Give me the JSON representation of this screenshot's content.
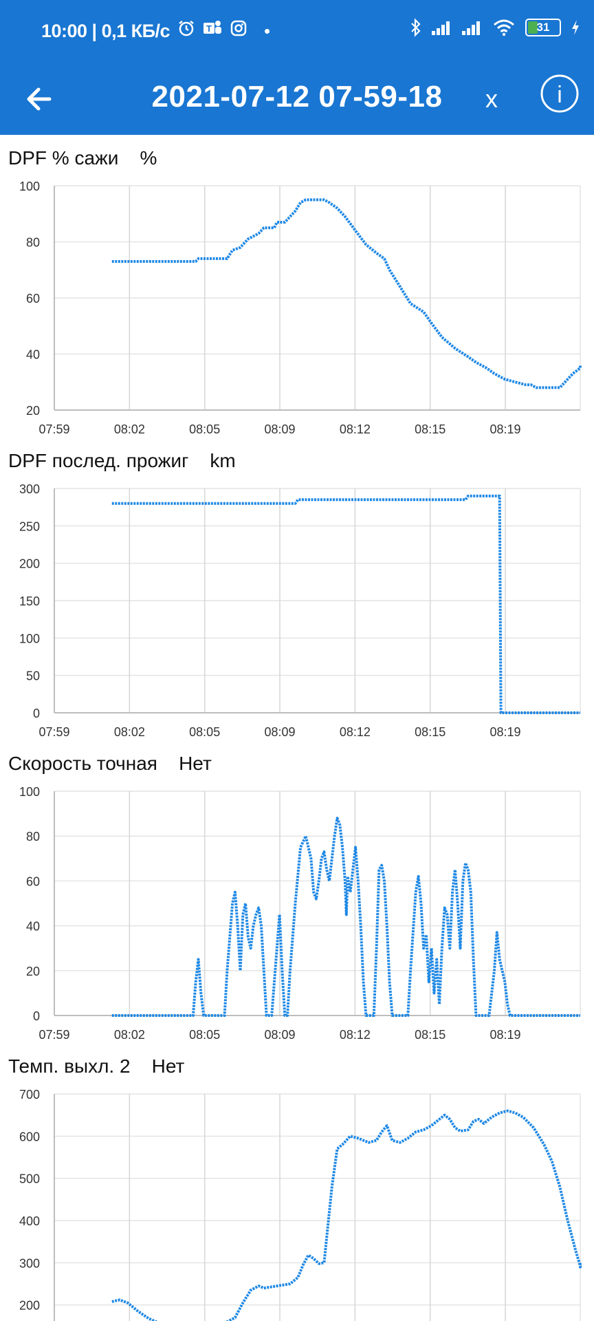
{
  "status_bar": {
    "time_speed": "10:00 | 0,1 КБ/с",
    "battery": "31",
    "icons": [
      "alarm-icon",
      "teams-icon",
      "instagram-icon",
      "bluetooth-icon",
      "signal-icon",
      "signal-icon",
      "wifi-icon",
      "battery-icon",
      "charging-icon"
    ]
  },
  "app_bar": {
    "title": "2021-07-12 07-59-18",
    "close_label": "x",
    "info_label": "i",
    "color": "#1976d2"
  },
  "line_color": "#1e88e5",
  "time_ticks": [
    "07:59",
    "08:02",
    "08:05",
    "08:09",
    "08:12",
    "08:15",
    "08:19"
  ],
  "chart_data": [
    {
      "type": "line",
      "title": "DPF % сажи",
      "unit": "%",
      "xlabel": "",
      "ylabel": "",
      "x_ticks": [
        "07:59",
        "08:02",
        "08:05",
        "08:09",
        "08:12",
        "08:15",
        "08:19"
      ],
      "y_ticks": [
        20,
        40,
        60,
        80,
        100
      ],
      "ylim": [
        20,
        100
      ],
      "xlim_minutes": [
        0,
        20.08
      ],
      "grid": true,
      "points": [
        [
          2.2,
          73
        ],
        [
          5.4,
          73
        ],
        [
          5.5,
          74
        ],
        [
          6.6,
          74
        ],
        [
          6.8,
          77
        ],
        [
          7.1,
          78
        ],
        [
          7.4,
          81
        ],
        [
          7.8,
          83
        ],
        [
          8.0,
          85
        ],
        [
          8.4,
          85
        ],
        [
          8.5,
          87
        ],
        [
          8.8,
          87
        ],
        [
          9.0,
          89
        ],
        [
          9.2,
          91
        ],
        [
          9.4,
          94
        ],
        [
          9.6,
          95
        ],
        [
          10.3,
          95
        ],
        [
          10.5,
          94
        ],
        [
          10.8,
          92
        ],
        [
          11.1,
          89
        ],
        [
          11.5,
          84
        ],
        [
          11.9,
          79
        ],
        [
          12.3,
          76
        ],
        [
          12.6,
          74
        ],
        [
          12.8,
          70
        ],
        [
          13.2,
          64
        ],
        [
          13.6,
          58
        ],
        [
          14.1,
          55
        ],
        [
          14.4,
          51
        ],
        [
          14.8,
          46
        ],
        [
          15.3,
          42
        ],
        [
          15.8,
          39
        ],
        [
          16.1,
          37
        ],
        [
          16.5,
          35
        ],
        [
          16.8,
          33
        ],
        [
          17.2,
          31
        ],
        [
          17.6,
          30
        ],
        [
          18.0,
          29
        ],
        [
          18.2,
          29
        ],
        [
          18.4,
          28
        ],
        [
          18.6,
          28
        ],
        [
          19.3,
          28
        ],
        [
          19.5,
          30
        ],
        [
          19.8,
          33
        ],
        [
          20.1,
          35
        ],
        [
          20.3,
          36
        ],
        [
          21.2,
          36
        ]
      ]
    },
    {
      "type": "line",
      "title": "DPF послед. прожиг",
      "unit": "km",
      "xlabel": "",
      "ylabel": "",
      "x_ticks": [
        "07:59",
        "08:02",
        "08:05",
        "08:09",
        "08:12",
        "08:15",
        "08:19"
      ],
      "y_ticks": [
        0,
        50,
        100,
        150,
        200,
        250,
        300
      ],
      "ylim": [
        0,
        300
      ],
      "xlim_minutes": [
        0,
        20.08
      ],
      "grid": true,
      "points": [
        [
          2.2,
          280
        ],
        [
          9.2,
          280
        ],
        [
          9.3,
          285
        ],
        [
          15.7,
          285
        ],
        [
          15.8,
          290
        ],
        [
          17.0,
          290
        ],
        [
          17.05,
          0
        ],
        [
          20.08,
          0
        ]
      ]
    },
    {
      "type": "line",
      "title": "Скорость точная",
      "unit": "Нет",
      "xlabel": "",
      "ylabel": "",
      "x_ticks": [
        "07:59",
        "08:02",
        "08:05",
        "08:09",
        "08:12",
        "08:15",
        "08:19"
      ],
      "y_ticks": [
        0,
        20,
        40,
        60,
        80,
        100
      ],
      "ylim": [
        0,
        100
      ],
      "xlim_minutes": [
        0,
        20.08
      ],
      "grid": true,
      "points": [
        [
          2.2,
          0
        ],
        [
          5.3,
          0
        ],
        [
          5.4,
          15
        ],
        [
          5.5,
          25
        ],
        [
          5.6,
          10
        ],
        [
          5.7,
          0
        ],
        [
          6.5,
          0
        ],
        [
          6.6,
          20
        ],
        [
          6.8,
          50
        ],
        [
          6.9,
          55
        ],
        [
          7.0,
          40
        ],
        [
          7.1,
          20
        ],
        [
          7.2,
          45
        ],
        [
          7.3,
          50
        ],
        [
          7.4,
          35
        ],
        [
          7.5,
          30
        ],
        [
          7.6,
          40
        ],
        [
          7.7,
          45
        ],
        [
          7.8,
          48
        ],
        [
          7.9,
          40
        ],
        [
          8.0,
          20
        ],
        [
          8.1,
          0
        ],
        [
          8.3,
          0
        ],
        [
          8.5,
          30
        ],
        [
          8.6,
          45
        ],
        [
          8.7,
          20
        ],
        [
          8.8,
          0
        ],
        [
          8.9,
          0
        ],
        [
          9.0,
          20
        ],
        [
          9.2,
          50
        ],
        [
          9.4,
          75
        ],
        [
          9.6,
          80
        ],
        [
          9.8,
          70
        ],
        [
          9.9,
          55
        ],
        [
          10.0,
          52
        ],
        [
          10.1,
          60
        ],
        [
          10.2,
          70
        ],
        [
          10.3,
          73
        ],
        [
          10.4,
          65
        ],
        [
          10.5,
          60
        ],
        [
          10.6,
          70
        ],
        [
          10.7,
          80
        ],
        [
          10.8,
          88
        ],
        [
          10.9,
          85
        ],
        [
          11.0,
          75
        ],
        [
          11.1,
          60
        ],
        [
          11.15,
          45
        ],
        [
          11.2,
          62
        ],
        [
          11.3,
          55
        ],
        [
          11.4,
          65
        ],
        [
          11.5,
          75
        ],
        [
          11.6,
          60
        ],
        [
          11.7,
          40
        ],
        [
          11.8,
          15
        ],
        [
          11.9,
          0
        ],
        [
          12.2,
          0
        ],
        [
          12.3,
          30
        ],
        [
          12.4,
          65
        ],
        [
          12.5,
          67
        ],
        [
          12.6,
          60
        ],
        [
          12.7,
          40
        ],
        [
          12.8,
          15
        ],
        [
          12.9,
          0
        ],
        [
          13.5,
          0
        ],
        [
          13.6,
          20
        ],
        [
          13.8,
          55
        ],
        [
          13.9,
          62
        ],
        [
          14.0,
          50
        ],
        [
          14.1,
          30
        ],
        [
          14.2,
          36
        ],
        [
          14.3,
          15
        ],
        [
          14.4,
          30
        ],
        [
          14.5,
          10
        ],
        [
          14.6,
          25
        ],
        [
          14.7,
          5
        ],
        [
          14.8,
          30
        ],
        [
          14.9,
          48
        ],
        [
          15.0,
          45
        ],
        [
          15.1,
          30
        ],
        [
          15.2,
          55
        ],
        [
          15.3,
          65
        ],
        [
          15.4,
          50
        ],
        [
          15.5,
          30
        ],
        [
          15.6,
          60
        ],
        [
          15.7,
          68
        ],
        [
          15.8,
          65
        ],
        [
          15.9,
          55
        ],
        [
          16.0,
          25
        ],
        [
          16.1,
          0
        ],
        [
          16.6,
          0
        ],
        [
          16.8,
          20
        ],
        [
          16.9,
          37
        ],
        [
          17.0,
          25
        ],
        [
          17.1,
          20
        ],
        [
          17.2,
          15
        ],
        [
          17.3,
          5
        ],
        [
          17.4,
          0
        ],
        [
          20.08,
          0
        ]
      ]
    },
    {
      "type": "line",
      "title": "Темп. выхл. 2",
      "unit": "Нет",
      "xlabel": "",
      "ylabel": "",
      "x_ticks": [],
      "y_ticks": [
        200,
        300,
        400,
        500,
        600,
        700
      ],
      "ylim": [
        100,
        700
      ],
      "xlim_minutes": [
        0,
        20.08
      ],
      "grid": true,
      "points": [
        [
          2.2,
          208
        ],
        [
          2.5,
          212
        ],
        [
          2.8,
          205
        ],
        [
          3.2,
          185
        ],
        [
          3.6,
          168
        ],
        [
          4.0,
          157
        ],
        [
          4.6,
          148
        ],
        [
          5.2,
          145
        ],
        [
          5.8,
          143
        ],
        [
          6.2,
          146
        ],
        [
          6.6,
          160
        ],
        [
          6.9,
          170
        ],
        [
          7.2,
          205
        ],
        [
          7.5,
          235
        ],
        [
          7.8,
          245
        ],
        [
          8.0,
          240
        ],
        [
          8.5,
          245
        ],
        [
          9.0,
          250
        ],
        [
          9.3,
          265
        ],
        [
          9.5,
          295
        ],
        [
          9.7,
          318
        ],
        [
          9.9,
          310
        ],
        [
          10.1,
          298
        ],
        [
          10.3,
          300
        ],
        [
          10.4,
          360
        ],
        [
          10.6,
          480
        ],
        [
          10.8,
          570
        ],
        [
          11.0,
          580
        ],
        [
          11.3,
          600
        ],
        [
          11.6,
          595
        ],
        [
          12.0,
          585
        ],
        [
          12.3,
          590
        ],
        [
          12.5,
          610
        ],
        [
          12.7,
          625
        ],
        [
          12.9,
          590
        ],
        [
          13.2,
          585
        ],
        [
          13.5,
          595
        ],
        [
          13.8,
          610
        ],
        [
          14.1,
          615
        ],
        [
          14.4,
          625
        ],
        [
          14.7,
          640
        ],
        [
          14.9,
          650
        ],
        [
          15.1,
          640
        ],
        [
          15.3,
          620
        ],
        [
          15.5,
          612
        ],
        [
          15.8,
          615
        ],
        [
          16.0,
          635
        ],
        [
          16.2,
          640
        ],
        [
          16.4,
          630
        ],
        [
          16.7,
          645
        ],
        [
          17.0,
          655
        ],
        [
          17.3,
          660
        ],
        [
          17.6,
          655
        ],
        [
          17.9,
          645
        ],
        [
          18.3,
          620
        ],
        [
          18.7,
          580
        ],
        [
          19.0,
          540
        ],
        [
          19.3,
          480
        ],
        [
          19.6,
          400
        ],
        [
          19.9,
          330
        ],
        [
          20.1,
          292
        ],
        [
          20.5,
          290
        ],
        [
          21.0,
          295
        ],
        [
          21.3,
          300
        ]
      ]
    }
  ]
}
